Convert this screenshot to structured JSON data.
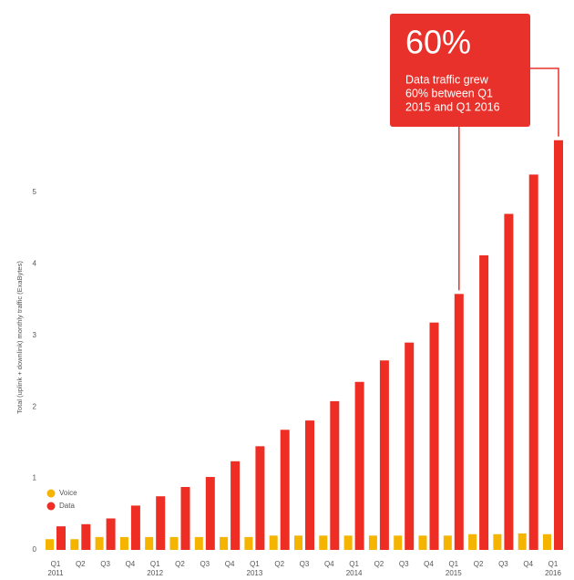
{
  "chart_data": {
    "type": "bar",
    "y_label": "Total (uplink + downlink) monthly traffic (ExaBytes)",
    "categories": [
      "Q1",
      "Q2",
      "Q3",
      "Q4",
      "Q1",
      "Q2",
      "Q3",
      "Q4",
      "Q1",
      "Q2",
      "Q3",
      "Q4",
      "Q1",
      "Q2",
      "Q3",
      "Q4",
      "Q1",
      "Q2",
      "Q3",
      "Q4",
      "Q1"
    ],
    "years": [
      "2011",
      null,
      null,
      null,
      "2012",
      null,
      null,
      null,
      "2013",
      null,
      null,
      null,
      "2014",
      null,
      null,
      null,
      "2015",
      null,
      null,
      null,
      "2016"
    ],
    "series": [
      {
        "name": "Voice",
        "color": "#f5b400",
        "values": [
          0.15,
          0.15,
          0.18,
          0.18,
          0.18,
          0.18,
          0.18,
          0.18,
          0.18,
          0.2,
          0.2,
          0.2,
          0.2,
          0.2,
          0.2,
          0.2,
          0.2,
          0.22,
          0.22,
          0.23,
          0.22
        ]
      },
      {
        "name": "Data",
        "color": "#ee2e24",
        "values": [
          0.33,
          0.36,
          0.44,
          0.62,
          0.75,
          0.88,
          1.02,
          1.24,
          1.45,
          1.68,
          1.81,
          2.08,
          2.35,
          2.65,
          2.9,
          3.18,
          3.58,
          4.12,
          4.7,
          5.25,
          5.73
        ]
      }
    ],
    "ylim": [
      0,
      5.9
    ],
    "yticks": [
      0,
      1,
      2,
      3,
      4,
      5
    ],
    "grid": false,
    "legend": "lower left",
    "annotation": {
      "headline": "60%",
      "text_lines": [
        "Data traffic grew",
        "60% between Q1",
        "2015 and Q1 2016"
      ],
      "color": "#e8312a"
    }
  }
}
